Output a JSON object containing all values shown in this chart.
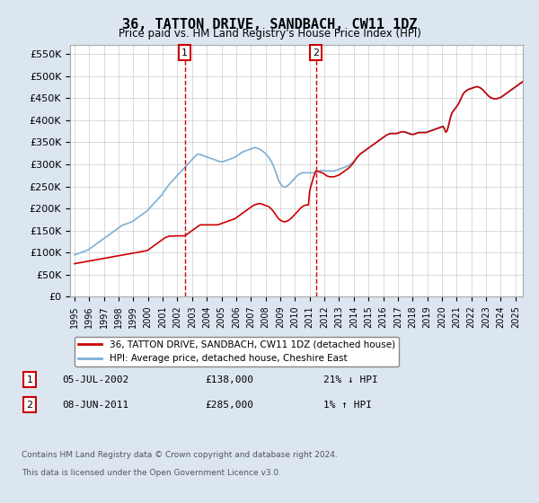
{
  "title": "36, TATTON DRIVE, SANDBACH, CW11 1DZ",
  "subtitle": "Price paid vs. HM Land Registry's House Price Index (HPI)",
  "ylabel_ticks": [
    "£0",
    "£50K",
    "£100K",
    "£150K",
    "£200K",
    "£250K",
    "£300K",
    "£350K",
    "£400K",
    "£450K",
    "£500K",
    "£550K"
  ],
  "ytick_values": [
    0,
    50000,
    100000,
    150000,
    200000,
    250000,
    300000,
    350000,
    400000,
    450000,
    500000,
    550000
  ],
  "ylim": [
    0,
    570000
  ],
  "xlim_left": 1994.7,
  "xlim_right": 2025.5,
  "line1_color": "#cc0000",
  "line2_color": "#7bafd4",
  "legend_line1": "36, TATTON DRIVE, SANDBACH, CW11 1DZ (detached house)",
  "legend_line2": "HPI: Average price, detached house, Cheshire East",
  "sale1_label": "1",
  "sale1_date": "05-JUL-2002",
  "sale1_price": "£138,000",
  "sale1_hpi": "21% ↓ HPI",
  "sale2_label": "2",
  "sale2_date": "08-JUN-2011",
  "sale2_price": "£285,000",
  "sale2_hpi": "1% ↑ HPI",
  "footnote1": "Contains HM Land Registry data © Crown copyright and database right 2024.",
  "footnote2": "This data is licensed under the Open Government Licence v3.0.",
  "bg_color": "#dce6f1",
  "plot_bg_color": "#ffffff",
  "sale1_x": 2002.5,
  "sale2_x": 2011.42
}
